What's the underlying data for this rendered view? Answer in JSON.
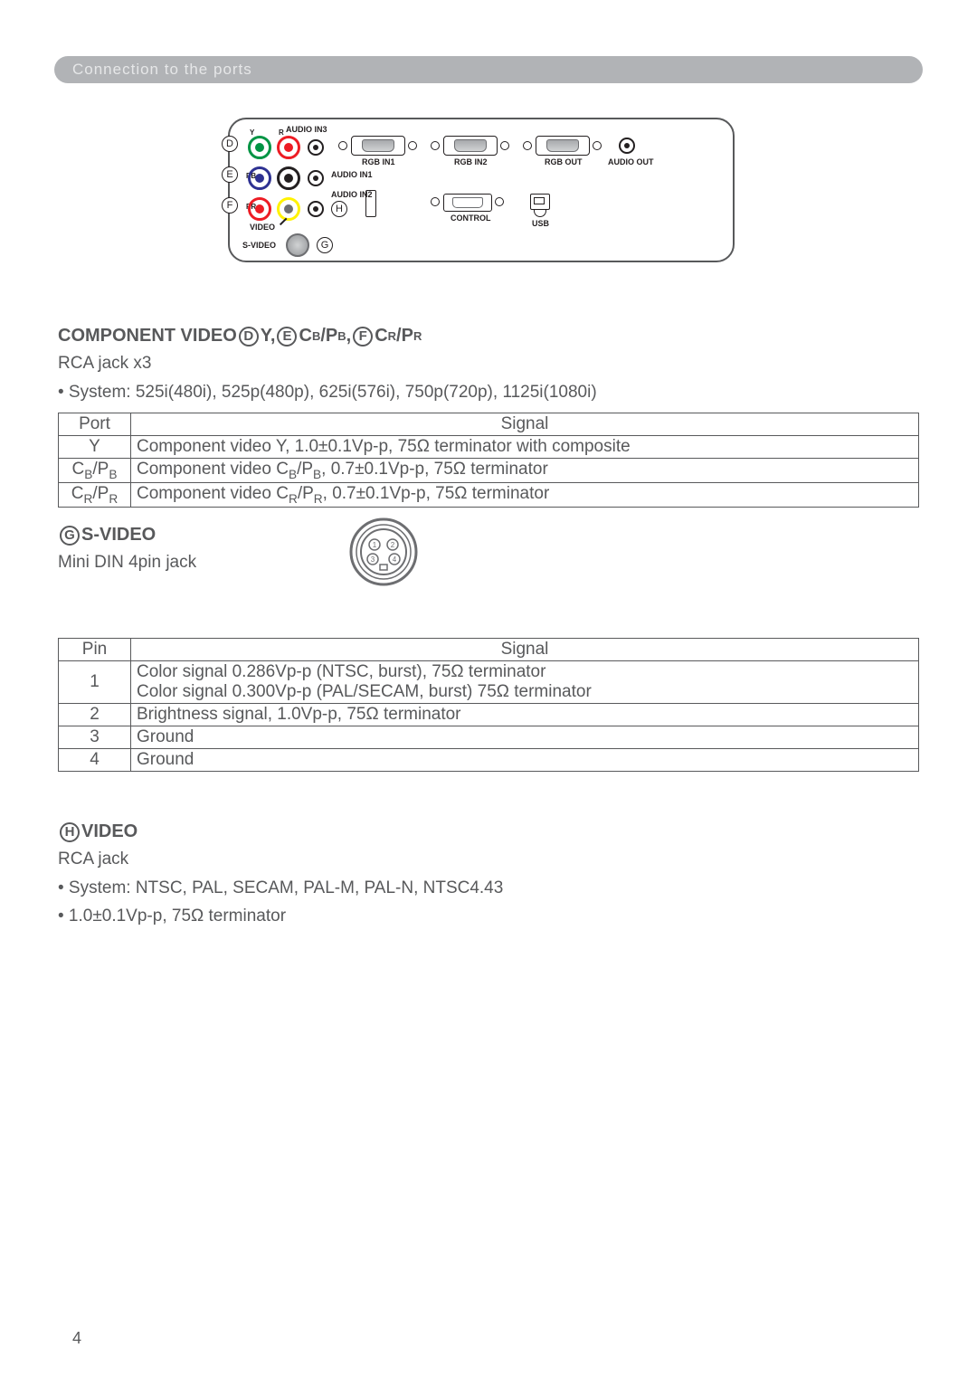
{
  "header": {
    "title": "Connection to the ports"
  },
  "pageNumber": "4",
  "diagram": {
    "audioIn3": "AUDIO IN3",
    "rgbIn1": "RGB IN1",
    "rgbIn2": "RGB IN2",
    "rgbOut": "RGB OUT",
    "audioOut": "AUDIO OUT",
    "audioIn1": "AUDIO IN1",
    "audioIn2": "AUDIO IN2",
    "control": "CONTROL",
    "usb": "USB",
    "video": "VIDEO",
    "svideo": "S-VIDEO",
    "letters": {
      "d": "D",
      "e": "E",
      "f": "F",
      "g": "G",
      "h": "H"
    },
    "pins": {
      "y": "Y",
      "r": "R",
      "pb": "PB",
      "l": "L",
      "pr": "PR"
    }
  },
  "section1": {
    "titlePrefix": "COMPONENT VIDEO ",
    "d": "D",
    "y": "Y, ",
    "e": "E",
    "cb": "C",
    "cbSub": "B",
    "slash1": "/P",
    "pbSub": "B",
    "comma": ", ",
    "f": "F",
    "cr": "C",
    "crSub": "R",
    "slash2": "/P",
    "prSub": "R",
    "para1": "RCA jack x3",
    "para2": "• System: 525i(480i), 525p(480p), 625i(576i), 750p(720p), 1125i(1080i)",
    "table": {
      "h1": "Port",
      "h2": "Signal",
      "rows": [
        {
          "port": "Y",
          "sig": "Component video Y, 1.0±0.1Vp-p, 75Ω terminator with composite"
        },
        {
          "portHtml": "C<sub>B</sub>/P<sub>B</sub>",
          "sigHtml": "Component video C<sub>B</sub>/P<sub>B</sub>, 0.7±0.1Vp-p, 75Ω terminator"
        },
        {
          "portHtml": "C<sub>R</sub>/P<sub>R</sub>",
          "sigHtml": "Component video C<sub>R</sub>/P<sub>R</sub>, 0.7±0.1Vp-p, 75Ω terminator"
        }
      ]
    }
  },
  "section2": {
    "g": "G",
    "title": "S-VIDEO",
    "para1": "Mini DIN 4pin jack",
    "table": {
      "h1": "Pin",
      "h2": "Signal",
      "rows": [
        {
          "pin": "1",
          "sig1": "Color signal 0.286Vp-p (NTSC, burst), 75Ω terminator",
          "sig2": "Color signal 0.300Vp-p (PAL/SECAM, burst) 75Ω terminator"
        },
        {
          "pin": "2",
          "sig": "Brightness signal, 1.0Vp-p, 75Ω terminator"
        },
        {
          "pin": "3",
          "sig": "Ground"
        },
        {
          "pin": "4",
          "sig": "Ground"
        }
      ]
    }
  },
  "section3": {
    "h": "H",
    "title": "VIDEO",
    "para1": "RCA jack",
    "para2": "• System: NTSC, PAL, SECAM, PAL-M, PAL-N, NTSC4.43",
    "para3": "• 1.0±0.1Vp-p, 75Ω terminator"
  },
  "style": {
    "colors": {
      "text": "#58595b",
      "headerBg": "#b1b3b6",
      "headerText": "#e6e7e8",
      "border": "#58595b",
      "rcaGreen": "#009444",
      "rcaRed": "#ed1c24",
      "rcaBlue": "#2e3192",
      "rcaWhite": "#ffffff",
      "rcaYellow": "#fff200"
    }
  }
}
